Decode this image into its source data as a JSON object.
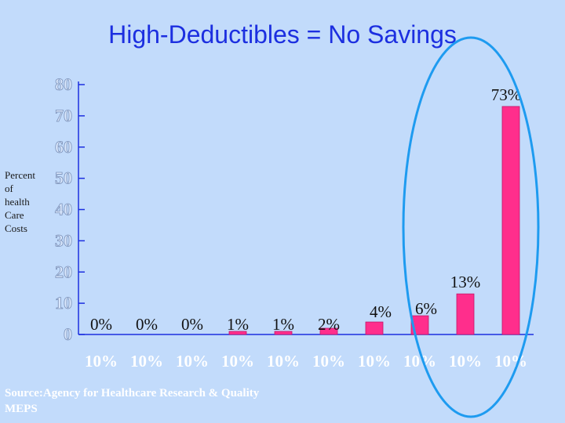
{
  "title": "High-Deductibles = No Savings",
  "ylabel_lines": [
    "Percent",
    "of",
    "health",
    "Care",
    "Costs"
  ],
  "source_lines": [
    "Source:Agency for Healthcare Research & Quality",
    "MEPS"
  ],
  "colors": {
    "bar": "#ff2e8c",
    "axis": "#1c2fe0",
    "tick_label": "#d9e7fc",
    "tick_label_stroke": "#7a90b8",
    "category_label": "#ffffff",
    "highlight": "#1e9bf0"
  },
  "chart_data": {
    "type": "bar",
    "title": "High-Deductibles = No Savings",
    "xlabel": "",
    "ylabel": "Percent of health Care Costs",
    "categories": [
      "10%",
      "10%",
      "10%",
      "10%",
      "10%",
      "10%",
      "10%",
      "10%",
      "10%",
      "10%"
    ],
    "values": [
      0,
      0,
      0,
      1,
      1,
      2,
      4,
      6,
      13,
      73
    ],
    "data_labels": [
      "0%",
      "0%",
      "0%",
      "1%",
      "1%",
      "2%",
      "4%",
      "6%",
      "13%",
      "73%"
    ],
    "ylim": [
      0,
      80
    ],
    "yticks": [
      0,
      10,
      20,
      30,
      40,
      50,
      60,
      70,
      80
    ],
    "grid": false,
    "legend": "none",
    "highlight": "ellipse around the last three bars"
  }
}
